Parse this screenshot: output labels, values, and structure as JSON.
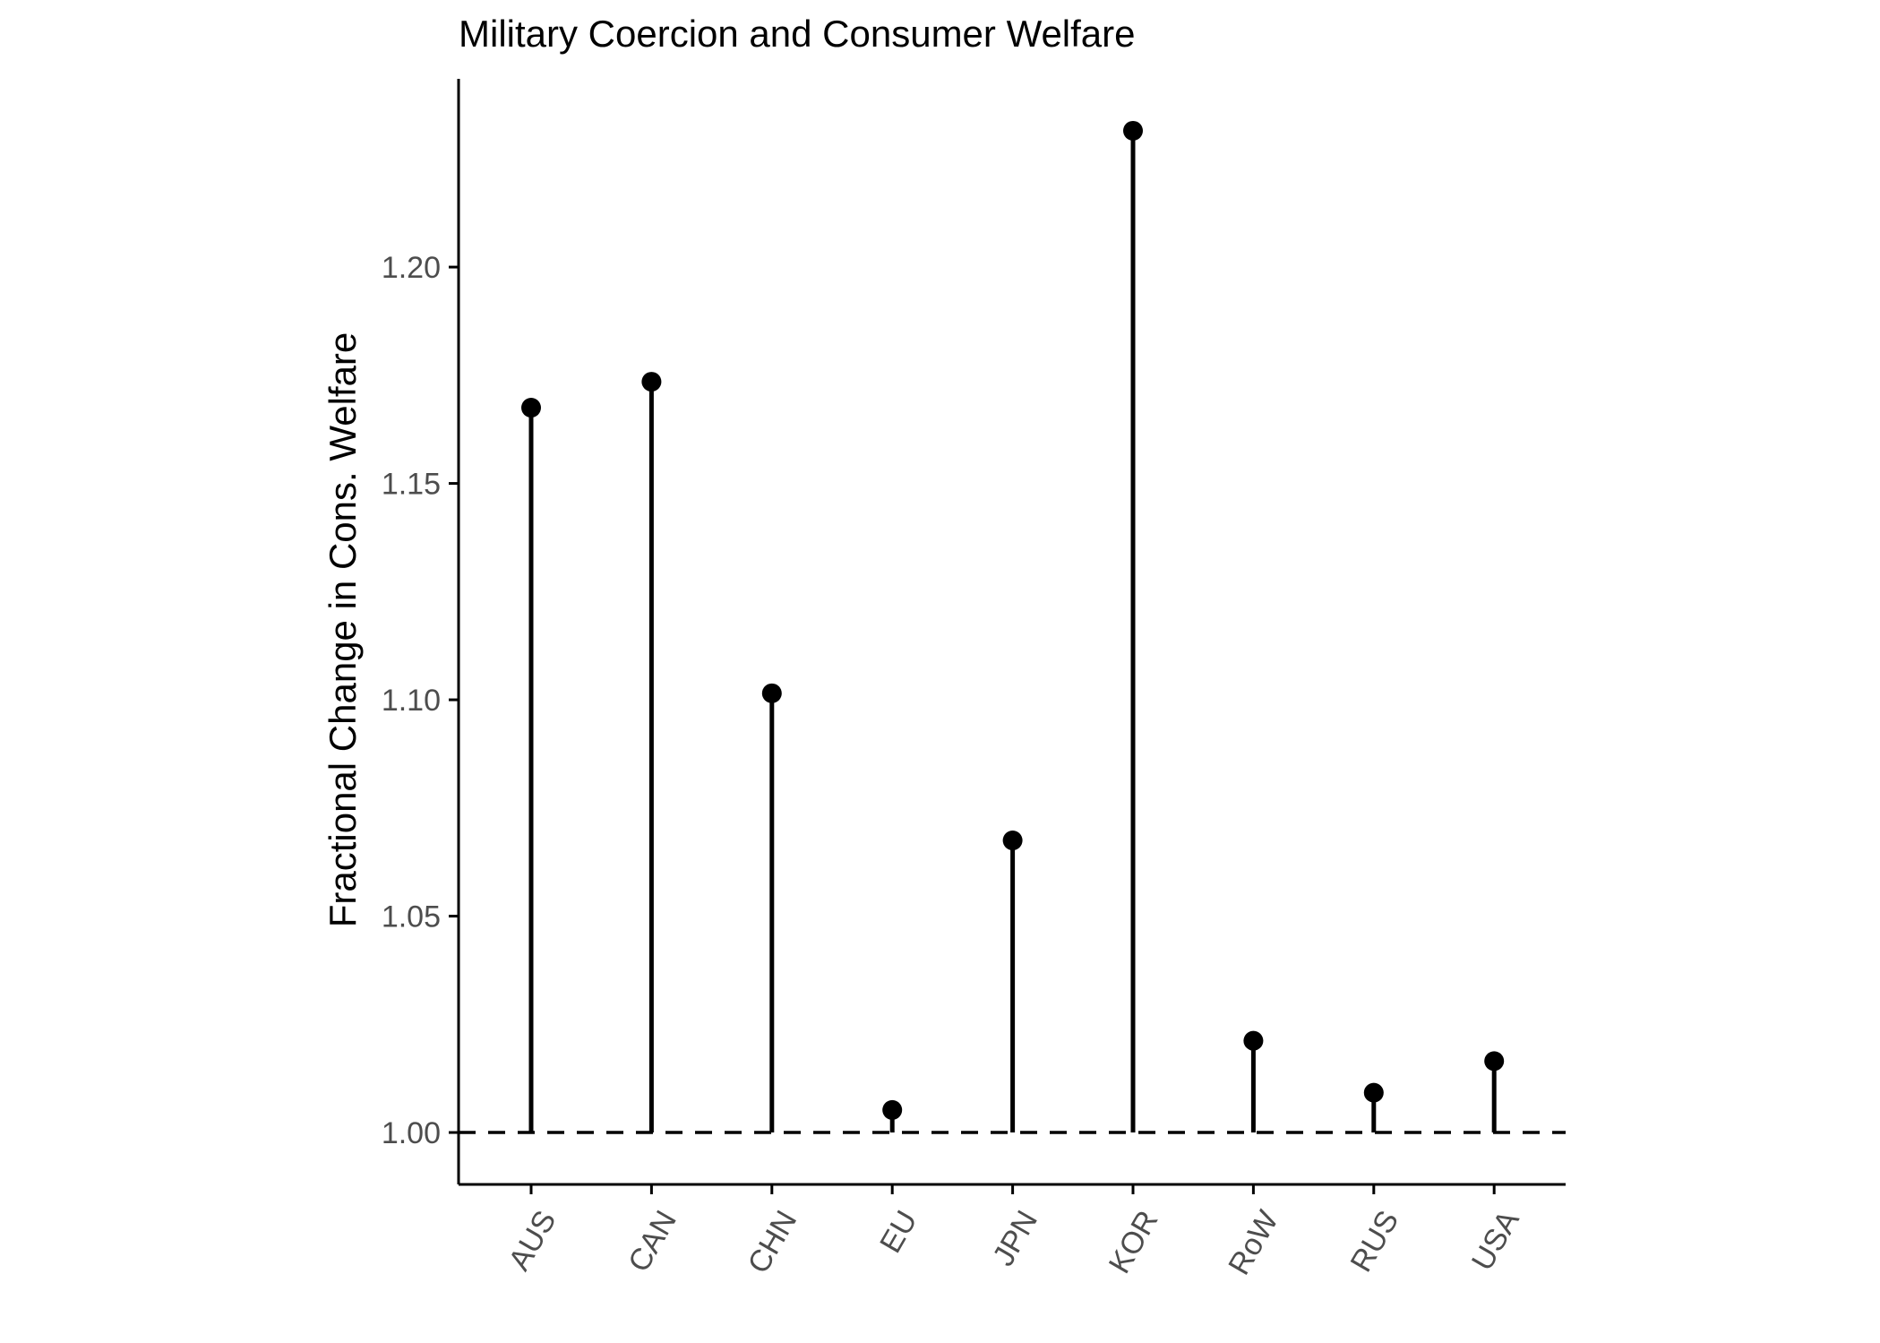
{
  "chart_data": {
    "type": "lollipop",
    "title": "Military Coercion and Consumer Welfare",
    "xlabel": "",
    "ylabel": "Fractional Change in Cons. Welfare",
    "categories": [
      "AUS",
      "CAN",
      "CHN",
      "EU",
      "JPN",
      "KOR",
      "RoW",
      "RUS",
      "USA"
    ],
    "values": [
      1.1675,
      1.1735,
      1.1015,
      1.0052,
      1.0675,
      1.2315,
      1.0212,
      1.0092,
      1.0165
    ],
    "baseline": 1.0,
    "baseline_style": "dashed",
    "ylim": [
      0.988,
      1.2435
    ],
    "yticks": [
      1.0,
      1.05,
      1.1,
      1.15,
      1.2
    ],
    "ytick_labels": [
      "1.00",
      "1.05",
      "1.10",
      "1.15",
      "1.20"
    ],
    "xtick_rotation_deg": 60,
    "grid": false,
    "legend": "none",
    "colors": {
      "marks": "#000000",
      "tick_labels": "#4d4d4d",
      "text": "#000000",
      "background": "#ffffff"
    }
  }
}
